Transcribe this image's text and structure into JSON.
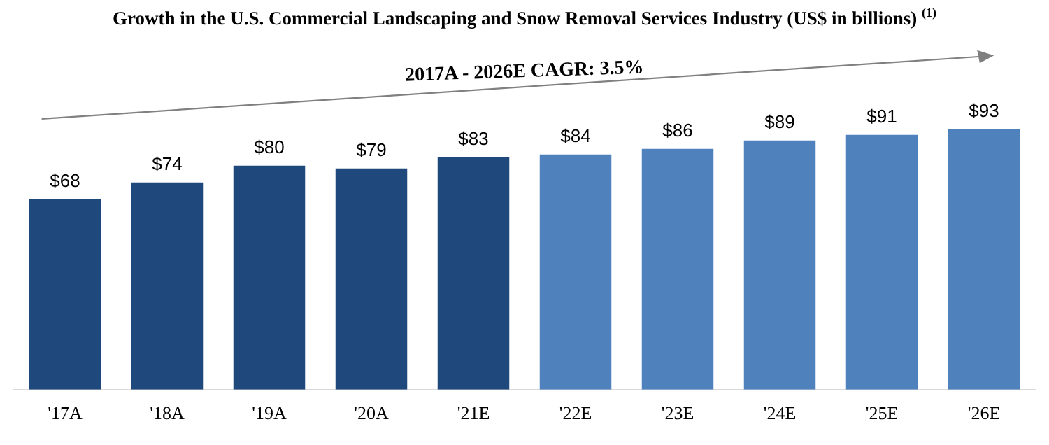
{
  "chart_data": {
    "type": "bar",
    "title": "Growth in the U.S. Commercial Landscaping and Snow Removal Services Industry (US$ in billions) $^{(1)}$",
    "categories": [
      "'17A",
      "'18A",
      "'19A",
      "'20A",
      "'21E",
      "'22E",
      "'23E",
      "'24E",
      "'25E",
      "'26E"
    ],
    "values": [
      68,
      74,
      80,
      79,
      83,
      84,
      86,
      89,
      91,
      93
    ],
    "colors": [
      "#1f497d",
      "#1f497d",
      "#1f497d",
      "#1f497d",
      "#1f497d",
      "#4f81bd",
      "#4f81bd",
      "#4f81bd",
      "#4f81bd",
      "#4f81bd"
    ],
    "value_labels": [
      "$68",
      "$74",
      "$80",
      "$79",
      "$83",
      "$84",
      "$86",
      "$89",
      "$91",
      "$93"
    ],
    "grid": false,
    "legend": false,
    "annotations": [
      "2017A - 2026E CAGR: 3.5%"
    ]
  }
}
